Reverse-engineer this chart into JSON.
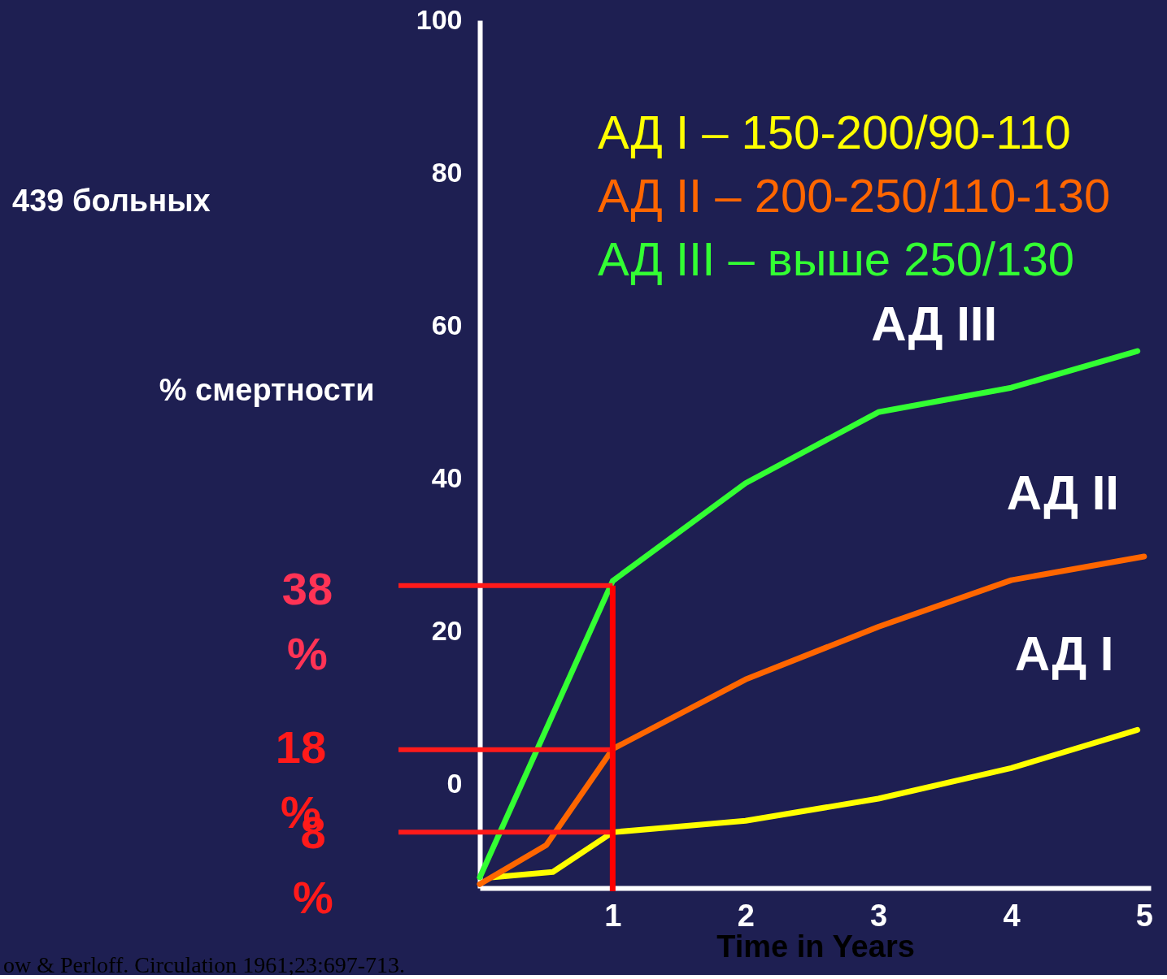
{
  "chart_data": {
    "type": "line",
    "xlabel": "Time in Years",
    "ylabel": "% смертности",
    "xlim": [
      0,
      5.05
    ],
    "xticks": [
      1,
      2,
      3,
      4,
      5
    ],
    "ylim": [
      -13.6,
      100
    ],
    "yticks": [
      0,
      20,
      40,
      60,
      80,
      100
    ],
    "grid": false,
    "marker": "none",
    "line_style": "solid",
    "series": [
      {
        "name": "АД I",
        "color": "#ffff00",
        "x": [
          0.1,
          0.55,
          1,
          2,
          3,
          4,
          4.95
        ],
        "values": [
          -12.2,
          -11.5,
          -6.3,
          -4.8,
          -1.9,
          2.1,
          7.1
        ]
      },
      {
        "name": "АД II",
        "color": "#ff6600",
        "x": [
          0,
          0.5,
          1,
          2,
          3,
          4,
          5
        ],
        "values": [
          -13.1,
          -8,
          4.6,
          13.7,
          20.6,
          26.7,
          29.8
        ]
      },
      {
        "name": "АД III",
        "color": "#33ff33",
        "x": [
          0,
          1,
          2,
          3,
          4,
          4.95
        ],
        "values": [
          -12.2,
          26.6,
          39.4,
          48.7,
          51.9,
          56.7
        ]
      }
    ],
    "ref_lines": [
      {
        "axis": "y",
        "value": 26,
        "color": "#ff1a1a"
      },
      {
        "axis": "y",
        "value": 4.5,
        "color": "#ff1a1a"
      },
      {
        "axis": "y",
        "value": -6.3,
        "color": "#ff1a1a"
      },
      {
        "axis": "x",
        "value": 1,
        "color": "#ff0000"
      }
    ],
    "annotations": [
      "АД I – 150-200/90-110",
      "АД II – 200-250/110-130",
      "АД III – выше 250/130",
      "439 больных",
      "ow & Perloff. Circulation 1961;23:697-713.",
      "38 %",
      "18 %",
      "8 %"
    ]
  }
}
